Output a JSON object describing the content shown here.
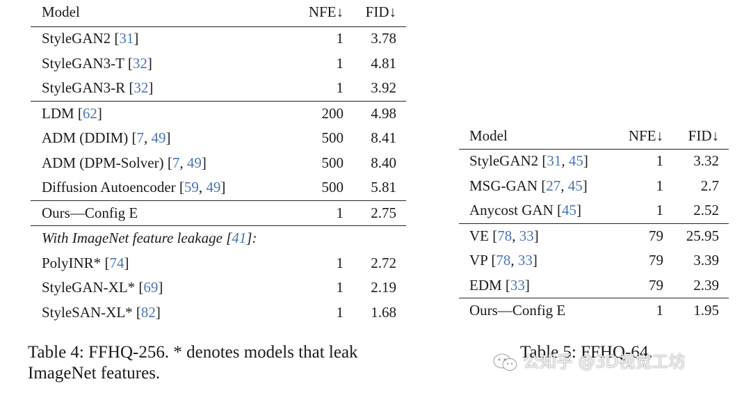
{
  "table4": {
    "headers": {
      "model": "Model",
      "nfe": "NFE↓",
      "fid": "FID↓"
    },
    "rows": [
      {
        "model": "StyleGAN2 ",
        "cites": [
          "31"
        ],
        "nfe": "1",
        "fid": "3.78"
      },
      {
        "model": "StyleGAN3-T ",
        "cites": [
          "32"
        ],
        "nfe": "1",
        "fid": "4.81"
      },
      {
        "model": "StyleGAN3-R ",
        "cites": [
          "32"
        ],
        "nfe": "1",
        "fid": "3.92"
      },
      {
        "model": "LDM ",
        "cites": [
          "62"
        ],
        "nfe": "200",
        "fid": "4.98"
      },
      {
        "model": "ADM (DDIM) ",
        "cites": [
          "7",
          "49"
        ],
        "nfe": "500",
        "fid": "8.41"
      },
      {
        "model": "ADM (DPM-Solver) ",
        "cites": [
          "7",
          "49"
        ],
        "nfe": "500",
        "fid": "8.40"
      },
      {
        "model": "Diffusion Autoencoder ",
        "cites": [
          "59",
          "49"
        ],
        "nfe": "500",
        "fid": "5.81"
      },
      {
        "model": "Ours—Config E",
        "cites": [],
        "nfe": "1",
        "fid": "2.75"
      },
      {
        "model": "PolyINR* ",
        "cites": [
          "74"
        ],
        "nfe": "1",
        "fid": "2.72"
      },
      {
        "model": "StyleGAN-XL* ",
        "cites": [
          "69"
        ],
        "nfe": "1",
        "fid": "2.19"
      },
      {
        "model": "StyleSAN-XL* ",
        "cites": [
          "82"
        ],
        "nfe": "1",
        "fid": "1.68"
      }
    ],
    "section_note": {
      "text": "With ImageNet feature leakage ",
      "cite": "41",
      "suffix": "]:"
    },
    "caption": "Table 4: FFHQ-256. * denotes models that leak ImageNet features."
  },
  "table5": {
    "headers": {
      "model": "Model",
      "nfe": "NFE↓",
      "fid": "FID↓"
    },
    "rows": [
      {
        "model": "StyleGAN2 ",
        "cites": [
          "31",
          "45"
        ],
        "nfe": "1",
        "fid": "3.32"
      },
      {
        "model": "MSG-GAN ",
        "cites": [
          "27",
          "45"
        ],
        "nfe": "1",
        "fid": "2.7"
      },
      {
        "model": "Anycost GAN ",
        "cites": [
          "45"
        ],
        "nfe": "1",
        "fid": "2.52"
      },
      {
        "model": "VE ",
        "cites": [
          "78",
          "33"
        ],
        "nfe": "79",
        "fid": "25.95"
      },
      {
        "model": "VP ",
        "cites": [
          "78",
          "33"
        ],
        "nfe": "79",
        "fid": "3.39"
      },
      {
        "model": "EDM ",
        "cites": [
          "33"
        ],
        "nfe": "79",
        "fid": "2.39"
      },
      {
        "model": "Ours—Config E",
        "cites": [],
        "nfe": "1",
        "fid": "1.95"
      }
    ],
    "caption": "Table 5: FFHQ-64."
  },
  "watermark": {
    "text": "公知乎 @3D视觉工坊",
    "icon": "wechat-icon"
  },
  "colors": {
    "citation": "#4a74b6",
    "text": "#1a1a1a"
  }
}
